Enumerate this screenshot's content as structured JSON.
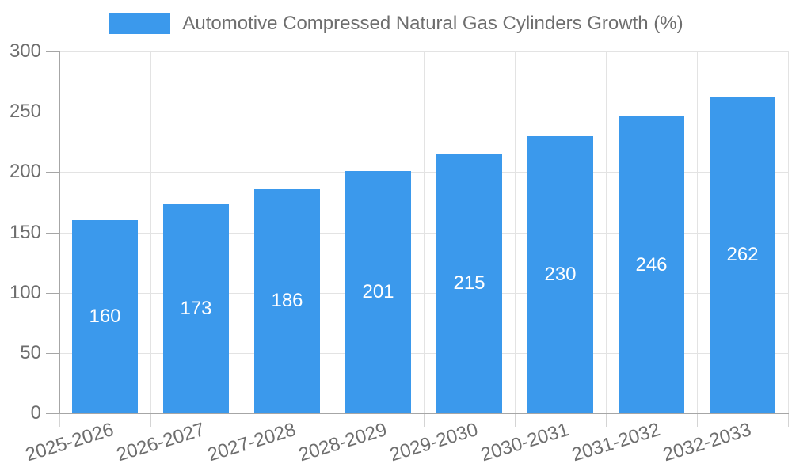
{
  "legend": {
    "label": "Automotive Compressed Natural Gas Cylinders Growth (%)"
  },
  "colors": {
    "bar": "#3b99ec",
    "axis": "#a6a6a6",
    "grid": "#e3e3e3",
    "tick_text": "#6e6e6e",
    "bar_label": "#ffffff"
  },
  "chart_data": {
    "type": "bar",
    "title": "Automotive Compressed Natural Gas Cylinders Growth (%)",
    "categories": [
      "2025-2026",
      "2026-2027",
      "2027-2028",
      "2028-2029",
      "2029-2030",
      "2030-2031",
      "2031-2032",
      "2032-2033"
    ],
    "values": [
      160,
      173,
      186,
      201,
      215,
      230,
      246,
      262
    ],
    "xlabel": "",
    "ylabel": "",
    "ylim": [
      0,
      300
    ],
    "ytick_step": 50,
    "yticks": [
      0,
      50,
      100,
      150,
      200,
      250,
      300
    ],
    "grid": true,
    "legend_position": "top",
    "bar_label_position": "inside-center"
  }
}
